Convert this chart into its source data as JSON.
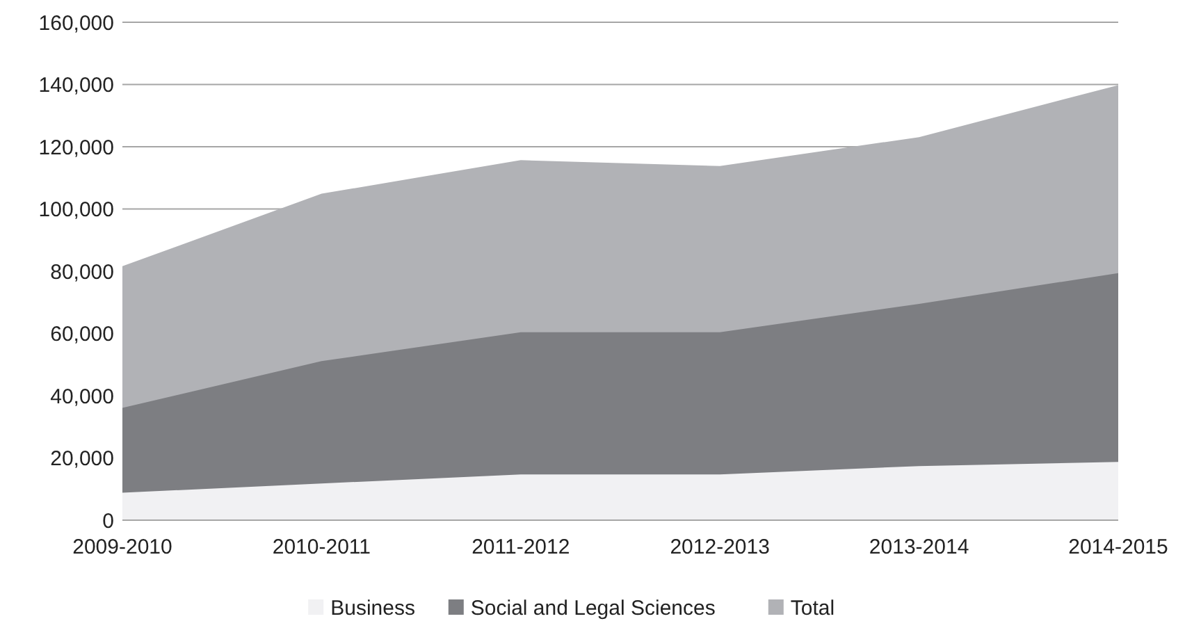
{
  "chart_data": {
    "type": "area",
    "categories": [
      "2009-2010",
      "2010-2011",
      "2011-2012",
      "2012-2013",
      "2013-2014",
      "2014-2015"
    ],
    "series": [
      {
        "name": "Business",
        "color": "#f1f1f3",
        "values": [
          8800,
          11800,
          14700,
          14700,
          17400,
          18700
        ]
      },
      {
        "name": "Social and Legal Sciences",
        "color": "#7d7e82",
        "values": [
          36100,
          51100,
          60400,
          60400,
          69500,
          79400
        ]
      },
      {
        "name": "Total",
        "color": "#b1b2b6",
        "values": [
          81600,
          104900,
          115700,
          113800,
          123100,
          139800
        ]
      }
    ],
    "ylim": [
      0,
      160000
    ],
    "yticks": [
      {
        "value": 0,
        "label": "0"
      },
      {
        "value": 20000,
        "label": "20,000"
      },
      {
        "value": 40000,
        "label": "40,000"
      },
      {
        "value": 60000,
        "label": "60,000"
      },
      {
        "value": 80000,
        "label": "80,000"
      },
      {
        "value": 100000,
        "label": "100,000"
      },
      {
        "value": 120000,
        "label": "120,000"
      },
      {
        "value": 140000,
        "label": "140,000"
      },
      {
        "value": 160000,
        "label": "160,000"
      }
    ],
    "grid": "y",
    "legend": "bottom"
  }
}
